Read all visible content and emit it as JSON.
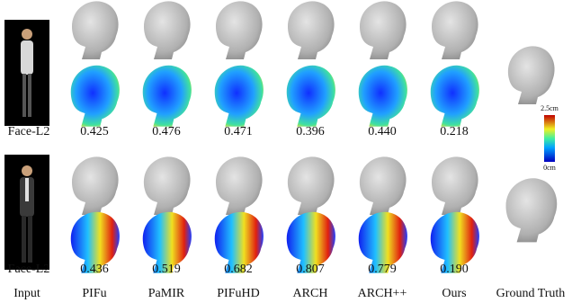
{
  "rows": [
    {
      "label": "Face-L2",
      "values": [
        "0.425",
        "0.476",
        "0.471",
        "0.396",
        "0.440",
        "0.218"
      ]
    },
    {
      "label": "Face-L2",
      "values": [
        "0.436",
        "0.519",
        "0.682",
        "0.807",
        "0.779",
        "0.190"
      ]
    }
  ],
  "columns": [
    "Input",
    "PIFu",
    "PaMIR",
    "PIFuHD",
    "ARCH",
    "ARCH++",
    "Ours",
    "Ground Truth"
  ],
  "colorbar": {
    "max": "2.5cm",
    "min": "0cm"
  }
}
